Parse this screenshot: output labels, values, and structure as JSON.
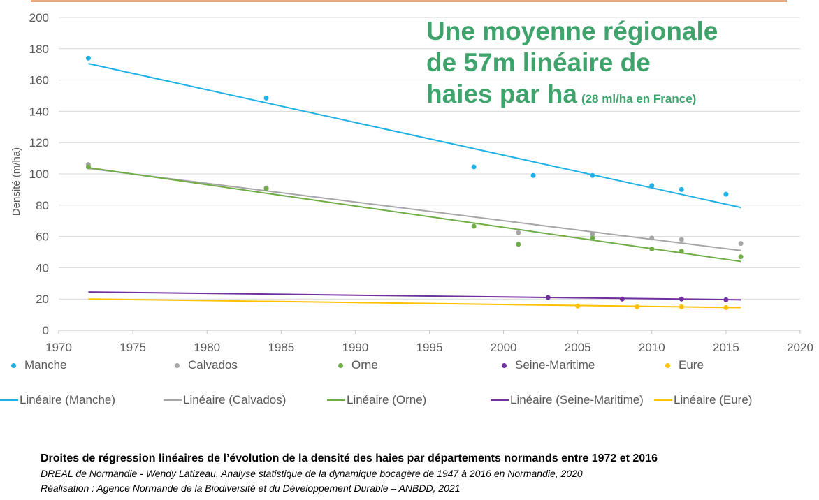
{
  "chart_data": {
    "type": "scatter",
    "ylabel": "Densité (m/ha)",
    "xlim": [
      1970,
      2020
    ],
    "ylim": [
      0,
      200
    ],
    "x_ticks": [
      1970,
      1975,
      1980,
      1985,
      1990,
      1995,
      2000,
      2005,
      2010,
      2015,
      2020
    ],
    "y_ticks": [
      0,
      20,
      40,
      60,
      80,
      100,
      120,
      140,
      160,
      180,
      200
    ],
    "grid": "horizontal",
    "legend_position": "bottom",
    "series": [
      {
        "name": "Manche",
        "color": "#1fb1e6",
        "points": [
          [
            1972,
            174
          ],
          [
            1984,
            148.5
          ],
          [
            1998,
            104.5
          ],
          [
            2002,
            99
          ],
          [
            2006,
            99
          ],
          [
            2010,
            92.5
          ],
          [
            2012,
            90
          ],
          [
            2015,
            87
          ]
        ]
      },
      {
        "name": "Calvados",
        "color": "#a6a6a6",
        "points": [
          [
            1972,
            106
          ],
          [
            1984,
            91
          ],
          [
            2001,
            62.5
          ],
          [
            2006,
            61.5
          ],
          [
            2010,
            59
          ],
          [
            2012,
            58
          ],
          [
            2016,
            55.5
          ]
        ]
      },
      {
        "name": "Orne",
        "color": "#70ad47",
        "points": [
          [
            1972,
            104.5
          ],
          [
            1984,
            90.5
          ],
          [
            1998,
            66.5
          ],
          [
            2001,
            55
          ],
          [
            2006,
            59
          ],
          [
            2010,
            52
          ],
          [
            2012,
            50.5
          ],
          [
            2016,
            47
          ]
        ]
      },
      {
        "name": "Seine-Maritime",
        "color": "#7030a0",
        "points": [
          [
            2003,
            21
          ],
          [
            2008,
            20
          ],
          [
            2012,
            20
          ],
          [
            2015,
            19.5
          ]
        ]
      },
      {
        "name": "Eure",
        "color": "#ffc000",
        "points": [
          [
            2005,
            15.5
          ],
          [
            2009,
            15
          ],
          [
            2012,
            15
          ],
          [
            2015,
            14.5
          ]
        ]
      }
    ],
    "trendlines": [
      {
        "name": "Linéaire (Manche)",
        "color": "#1fb1e6",
        "start": [
          1972,
          170.5
        ],
        "end": [
          2016,
          78.5
        ]
      },
      {
        "name": "Linéaire (Calvados)",
        "color": "#a6a6a6",
        "start": [
          1972,
          103.5
        ],
        "end": [
          2016,
          51
        ]
      },
      {
        "name": "Linéaire (Orne)",
        "color": "#70ad47",
        "start": [
          1972,
          104
        ],
        "end": [
          2016,
          44
        ]
      },
      {
        "name": "Linéaire (Seine-Maritime)",
        "color": "#7030a0",
        "start": [
          1972,
          24.5
        ],
        "end": [
          2016,
          19.5
        ]
      },
      {
        "name": "Linéaire (Eure)",
        "color": "#ffc000",
        "start": [
          1972,
          20
        ],
        "end": [
          2016,
          14.5
        ]
      }
    ]
  },
  "headline": {
    "line1": "Une moyenne régionale",
    "line2": "de 57m linéaire de",
    "line3": "haies par ha",
    "note": "(28 ml/ha en France)",
    "color": "#3fa36b"
  },
  "caption": {
    "title": "Droites de régression linéaires de l’évolution de la densité des haies par départements normands entre 1972 et 2016",
    "source": "DREAL de Normandie - Wendy Latizeau, Analyse statistique de la dynamique bocagère de 1947 à 2016 en Normandie, 2020",
    "credit": "Réalisation : Agence Normande de la Biodiversité et du Développement Durable – ANBDD, 2021"
  },
  "top_rule_color": "#c55a11"
}
